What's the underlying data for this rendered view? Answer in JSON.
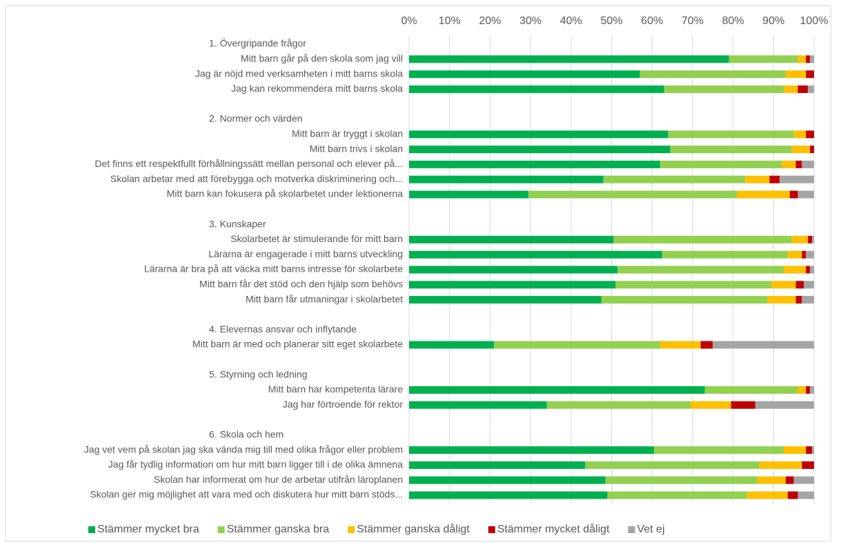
{
  "chart_data": {
    "type": "stacked_bar_horizontal",
    "categories": [
      "1. Övergripande frågor",
      "Mitt barn går på den skola som jag vill",
      "Jag är nöjd med verksamheten i mitt barns skola",
      "Jag kan rekommendera mitt barns skola",
      null,
      "2. Normer och värden",
      "Mitt barn är tryggt i skolan",
      "Mitt barn trivs i skolan",
      "Det finns ett respektfullt förhållningssätt mellan personal och elever på...",
      "Skolan arbetar med att förebygga och motverka diskriminering och...",
      "Mitt barn kan fokusera på skolarbetet under lektionerna",
      null,
      "3. Kunskaper",
      "Skolarbetet är stimulerande för mitt barn",
      "Lärarna är engagerade i mitt barns utveckling",
      "Lärarna är bra på att väcka mitt barns intresse för skolarbete",
      "Mitt barn får det stöd och den hjälp som behövs",
      "Mitt barn får utmaningar i skolarbetet",
      null,
      "4. Elevernas ansvar och inflytande",
      "Mitt barn är med och planerar sitt eget skolarbete",
      null,
      "5. Styrning och ledning",
      "Mitt barn har kompetenta lärare",
      "Jag har förtroende för rektor",
      null,
      "6. Skola och hem",
      "Jag vet vem på skolan jag ska vända mig till med olika frågor eller problem",
      "Jag får tydlig information om hur mitt barn ligger till i de olika ämnena",
      "Skolan har informerat om hur de arbetar utifrån läroplanen",
      "Skolan ger mig möjlighet att vara med och diskutera hur mitt barn stöds..."
    ],
    "series": [
      {
        "name": "Stämmer mycket bra",
        "color": "#00b050",
        "values": [
          null,
          79,
          57,
          63,
          null,
          null,
          64,
          64.5,
          62,
          48,
          29.5,
          null,
          null,
          50.5,
          62.5,
          51.5,
          51,
          47.5,
          null,
          null,
          21,
          null,
          null,
          73,
          34,
          null,
          null,
          60.5,
          43.5,
          48.5,
          49
        ]
      },
      {
        "name": "Stämmer ganska bra",
        "color": "#92d050",
        "values": [
          null,
          17,
          36,
          29.5,
          null,
          null,
          31,
          30,
          30,
          35,
          51.5,
          null,
          null,
          44,
          31,
          41,
          38.5,
          41,
          null,
          null,
          41,
          null,
          null,
          23,
          35.5,
          null,
          null,
          32,
          43,
          37.5,
          34.5
        ]
      },
      {
        "name": "Stämmer ganska dåligt",
        "color": "#ffc000",
        "values": [
          null,
          2,
          5,
          3.5,
          null,
          null,
          3,
          4.5,
          3.5,
          6,
          13,
          null,
          null,
          4,
          3.5,
          5.5,
          6,
          7,
          null,
          null,
          10,
          null,
          null,
          2,
          10,
          null,
          null,
          5.5,
          10.5,
          7,
          10
        ]
      },
      {
        "name": "Stämmer mycket dåligt",
        "color": "#c00000",
        "values": [
          null,
          1,
          2,
          2.5,
          null,
          null,
          2,
          1,
          1.5,
          2.5,
          2,
          null,
          null,
          1,
          1,
          1,
          2,
          1.5,
          null,
          null,
          3,
          null,
          null,
          1,
          6,
          null,
          null,
          1.5,
          3,
          2,
          2.5
        ]
      },
      {
        "name": "Vet ej",
        "color": "#a5a5a5",
        "values": [
          null,
          1,
          0,
          1.5,
          null,
          null,
          0,
          0,
          3,
          8.5,
          4,
          null,
          null,
          0.5,
          2,
          1,
          2.5,
          3,
          null,
          null,
          25,
          null,
          null,
          1,
          14.5,
          null,
          null,
          0.5,
          0,
          5,
          4
        ]
      }
    ],
    "xlim": [
      0,
      100
    ],
    "xticks": [
      {
        "value": 0,
        "label": "0%"
      },
      {
        "value": 10,
        "label": "10%"
      },
      {
        "value": 20,
        "label": "20%"
      },
      {
        "value": 30,
        "label": "30%"
      },
      {
        "value": 40,
        "label": "40%"
      },
      {
        "value": 50,
        "label": "50%"
      },
      {
        "value": 60,
        "label": "60%"
      },
      {
        "value": 70,
        "label": "70%"
      },
      {
        "value": 80,
        "label": "80%"
      },
      {
        "value": 90,
        "label": "90%"
      },
      {
        "value": 100,
        "label": "100%"
      }
    ],
    "grid": true,
    "legend": "bottom"
  }
}
